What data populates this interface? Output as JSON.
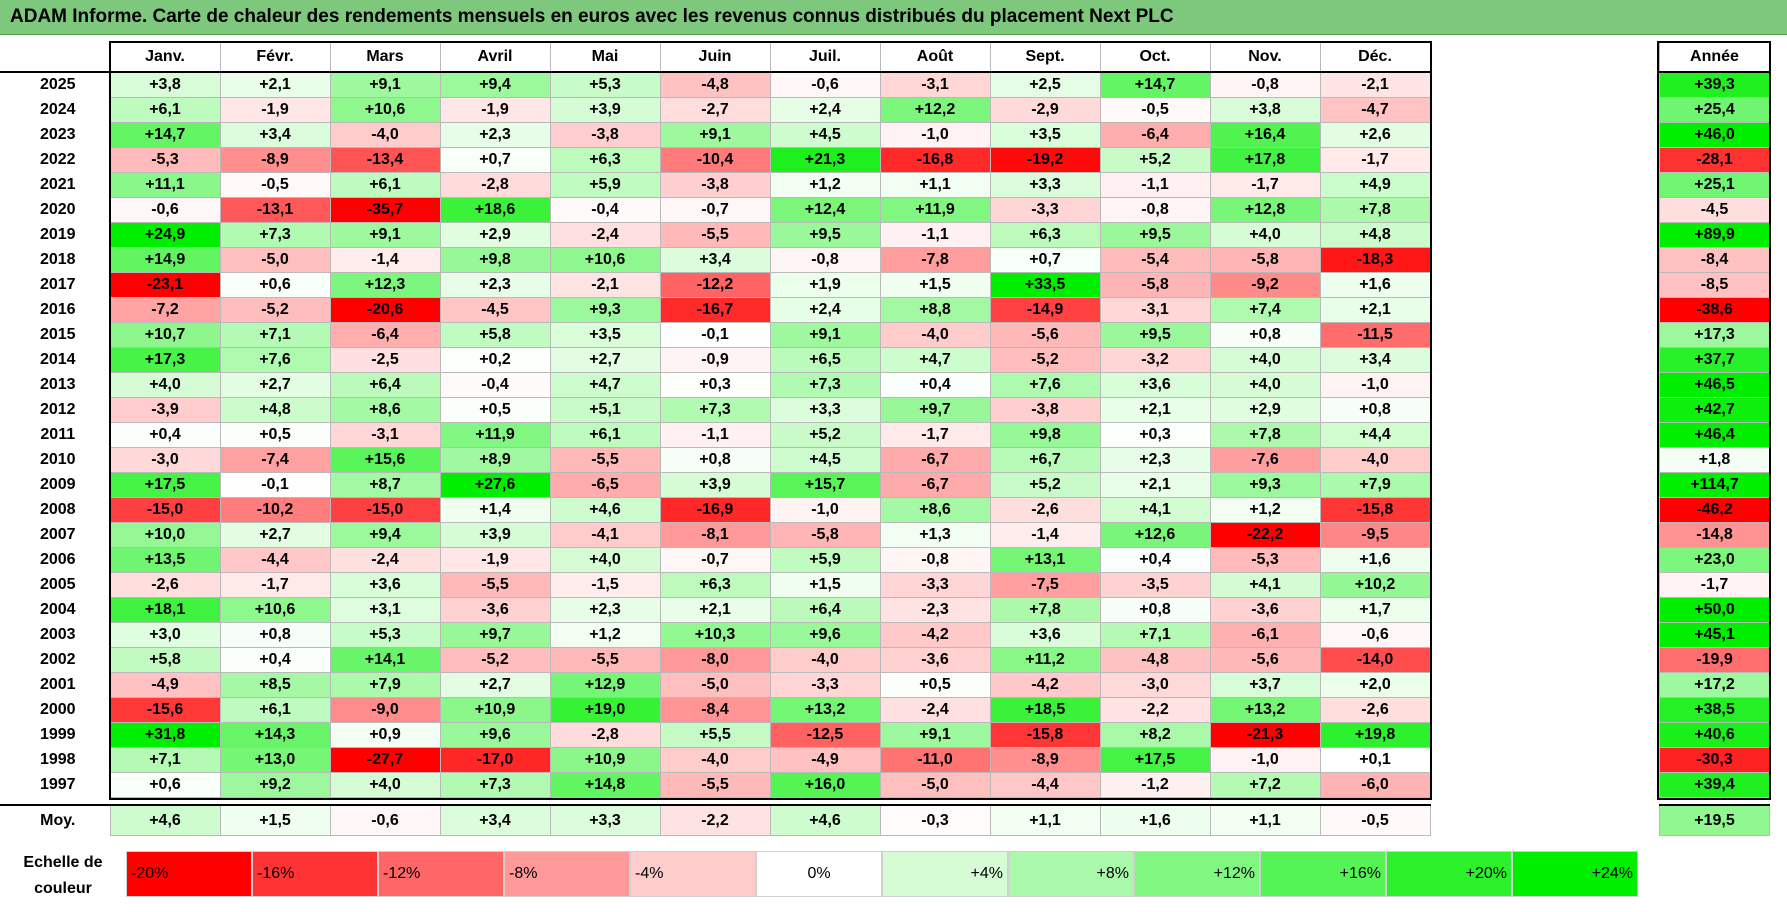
{
  "title": "ADAM Informe. Carte de chaleur des rendements mensuels en euros avec les revenus connus distribués du placement Next PLC",
  "chart_data": {
    "type": "heatmap",
    "title": "ADAM Informe. Carte de chaleur des rendements mensuels en euros avec les revenus connus distribués du placement Next PLC",
    "months": [
      "Janv.",
      "Févr.",
      "Mars",
      "Avril",
      "Mai",
      "Juin",
      "Juil.",
      "Août",
      "Sept.",
      "Oct.",
      "Nov.",
      "Déc."
    ],
    "year_header": "Année",
    "average_label": "Moy.",
    "rows": [
      {
        "year": "2025",
        "values": [
          "+3,8",
          "+2,1",
          "+9,1",
          "+9,4",
          "+5,3",
          "-4,8",
          "-0,6",
          "-3,1",
          "+2,5",
          "+14,7",
          "-0,8",
          "-2,1"
        ],
        "total": "+39,3"
      },
      {
        "year": "2024",
        "values": [
          "+6,1",
          "-1,9",
          "+10,6",
          "-1,9",
          "+3,9",
          "-2,7",
          "+2,4",
          "+12,2",
          "-2,9",
          "-0,5",
          "+3,8",
          "-4,7"
        ],
        "total": "+25,4"
      },
      {
        "year": "2023",
        "values": [
          "+14,7",
          "+3,4",
          "-4,0",
          "+2,3",
          "-3,8",
          "+9,1",
          "+4,5",
          "-1,0",
          "+3,5",
          "-6,4",
          "+16,4",
          "+2,6"
        ],
        "total": "+46,0"
      },
      {
        "year": "2022",
        "values": [
          "-5,3",
          "-8,9",
          "-13,4",
          "+0,7",
          "+6,3",
          "-10,4",
          "+21,3",
          "-16,8",
          "-19,2",
          "+5,2",
          "+17,8",
          "-1,7"
        ],
        "total": "-28,1"
      },
      {
        "year": "2021",
        "values": [
          "+11,1",
          "-0,5",
          "+6,1",
          "-2,8",
          "+5,9",
          "-3,8",
          "+1,2",
          "+1,1",
          "+3,3",
          "-1,1",
          "-1,7",
          "+4,9"
        ],
        "total": "+25,1"
      },
      {
        "year": "2020",
        "values": [
          "-0,6",
          "-13,1",
          "-35,7",
          "+18,6",
          "-0,4",
          "-0,7",
          "+12,4",
          "+11,9",
          "-3,3",
          "-0,8",
          "+12,8",
          "+7,8"
        ],
        "total": "-4,5"
      },
      {
        "year": "2019",
        "values": [
          "+24,9",
          "+7,3",
          "+9,1",
          "+2,9",
          "-2,4",
          "-5,5",
          "+9,5",
          "-1,1",
          "+6,3",
          "+9,5",
          "+4,0",
          "+4,8"
        ],
        "total": "+89,9"
      },
      {
        "year": "2018",
        "values": [
          "+14,9",
          "-5,0",
          "-1,4",
          "+9,8",
          "+10,6",
          "+3,4",
          "-0,8",
          "-7,8",
          "+0,7",
          "-5,4",
          "-5,8",
          "-18,3"
        ],
        "total": "-8,4"
      },
      {
        "year": "2017",
        "values": [
          "-23,1",
          "+0,6",
          "+12,3",
          "+2,3",
          "-2,1",
          "-12,2",
          "+1,9",
          "+1,5",
          "+33,5",
          "-5,8",
          "-9,2",
          "+1,6"
        ],
        "total": "-8,5"
      },
      {
        "year": "2016",
        "values": [
          "-7,2",
          "-5,2",
          "-20,6",
          "-4,5",
          "+9,3",
          "-16,7",
          "+2,4",
          "+8,8",
          "-14,9",
          "-3,1",
          "+7,4",
          "+2,1"
        ],
        "total": "-38,6"
      },
      {
        "year": "2015",
        "values": [
          "+10,7",
          "+7,1",
          "-6,4",
          "+5,8",
          "+3,5",
          "-0,1",
          "+9,1",
          "-4,0",
          "-5,6",
          "+9,5",
          "+0,8",
          "-11,5"
        ],
        "total": "+17,3"
      },
      {
        "year": "2014",
        "values": [
          "+17,3",
          "+7,6",
          "-2,5",
          "+0,2",
          "+2,7",
          "-0,9",
          "+6,5",
          "+4,7",
          "-5,2",
          "-3,2",
          "+4,0",
          "+3,4"
        ],
        "total": "+37,7"
      },
      {
        "year": "2013",
        "values": [
          "+4,0",
          "+2,7",
          "+6,4",
          "-0,4",
          "+4,7",
          "+0,3",
          "+7,3",
          "+0,4",
          "+7,6",
          "+3,6",
          "+4,0",
          "-1,0"
        ],
        "total": "+46,5"
      },
      {
        "year": "2012",
        "values": [
          "-3,9",
          "+4,8",
          "+8,6",
          "+0,5",
          "+5,1",
          "+7,3",
          "+3,3",
          "+9,7",
          "-3,8",
          "+2,1",
          "+2,9",
          "+0,8"
        ],
        "total": "+42,7"
      },
      {
        "year": "2011",
        "values": [
          "+0,4",
          "+0,5",
          "-3,1",
          "+11,9",
          "+6,1",
          "-1,1",
          "+5,2",
          "-1,7",
          "+9,8",
          "+0,3",
          "+7,8",
          "+4,4"
        ],
        "total": "+46,4"
      },
      {
        "year": "2010",
        "values": [
          "-3,0",
          "-7,4",
          "+15,6",
          "+8,9",
          "-5,5",
          "+0,8",
          "+4,5",
          "-6,7",
          "+6,7",
          "+2,3",
          "-7,6",
          "-4,0"
        ],
        "total": "+1,8"
      },
      {
        "year": "2009",
        "values": [
          "+17,5",
          "-0,1",
          "+8,7",
          "+27,6",
          "-6,5",
          "+3,9",
          "+15,7",
          "-6,7",
          "+5,2",
          "+2,1",
          "+9,3",
          "+7,9"
        ],
        "total": "+114,7"
      },
      {
        "year": "2008",
        "values": [
          "-15,0",
          "-10,2",
          "-15,0",
          "+1,4",
          "+4,6",
          "-16,9",
          "-1,0",
          "+8,6",
          "-2,6",
          "+4,1",
          "+1,2",
          "-15,8"
        ],
        "total": "-46,2"
      },
      {
        "year": "2007",
        "values": [
          "+10,0",
          "+2,7",
          "+9,4",
          "+3,9",
          "-4,1",
          "-8,1",
          "-5,8",
          "+1,3",
          "-1,4",
          "+12,6",
          "-22,2",
          "-9,5"
        ],
        "total": "-14,8"
      },
      {
        "year": "2006",
        "values": [
          "+13,5",
          "-4,4",
          "-2,4",
          "-1,9",
          "+4,0",
          "-0,7",
          "+5,9",
          "-0,8",
          "+13,1",
          "+0,4",
          "-5,3",
          "+1,6"
        ],
        "total": "+23,0"
      },
      {
        "year": "2005",
        "values": [
          "-2,6",
          "-1,7",
          "+3,6",
          "-5,5",
          "-1,5",
          "+6,3",
          "+1,5",
          "-3,3",
          "-7,5",
          "-3,5",
          "+4,1",
          "+10,2"
        ],
        "total": "-1,7"
      },
      {
        "year": "2004",
        "values": [
          "+18,1",
          "+10,6",
          "+3,1",
          "-3,6",
          "+2,3",
          "+2,1",
          "+6,4",
          "-2,3",
          "+7,8",
          "+0,8",
          "-3,6",
          "+1,7"
        ],
        "total": "+50,0"
      },
      {
        "year": "2003",
        "values": [
          "+3,0",
          "+0,8",
          "+5,3",
          "+9,7",
          "+1,2",
          "+10,3",
          "+9,6",
          "-4,2",
          "+3,6",
          "+7,1",
          "-6,1",
          "-0,6"
        ],
        "total": "+45,1"
      },
      {
        "year": "2002",
        "values": [
          "+5,8",
          "+0,4",
          "+14,1",
          "-5,2",
          "-5,5",
          "-8,0",
          "-4,0",
          "-3,6",
          "+11,2",
          "-4,8",
          "-5,6",
          "-14,0"
        ],
        "total": "-19,9"
      },
      {
        "year": "2001",
        "values": [
          "-4,9",
          "+8,5",
          "+7,9",
          "+2,7",
          "+12,9",
          "-5,0",
          "-3,3",
          "+0,5",
          "-4,2",
          "-3,0",
          "+3,7",
          "+2,0"
        ],
        "total": "+17,2"
      },
      {
        "year": "2000",
        "values": [
          "-15,6",
          "+6,1",
          "-9,0",
          "+10,9",
          "+19,0",
          "-8,4",
          "+13,2",
          "-2,4",
          "+18,5",
          "-2,2",
          "+13,2",
          "-2,6"
        ],
        "total": "+38,5"
      },
      {
        "year": "1999",
        "values": [
          "+31,8",
          "+14,3",
          "+0,9",
          "+9,6",
          "-2,8",
          "+5,5",
          "-12,5",
          "+9,1",
          "-15,8",
          "+8,2",
          "-21,3",
          "+19,8"
        ],
        "total": "+40,6"
      },
      {
        "year": "1998",
        "values": [
          "+7,1",
          "+13,0",
          "-27,7",
          "-17,0",
          "+10,9",
          "-4,0",
          "-4,9",
          "-11,0",
          "-8,9",
          "+17,5",
          "-1,0",
          "+0,1"
        ],
        "total": "-30,3"
      },
      {
        "year": "1997",
        "values": [
          "+0,6",
          "+9,2",
          "+4,0",
          "+7,3",
          "+14,8",
          "-5,5",
          "+16,0",
          "-5,0",
          "-4,4",
          "-1,2",
          "+7,2",
          "-6,0"
        ],
        "total": "+39,4"
      }
    ],
    "averages": [
      "+4,6",
      "+1,5",
      "-0,6",
      "+3,4",
      "+3,3",
      "-2,2",
      "+4,6",
      "-0,3",
      "+1,1",
      "+1,6",
      "+1,1",
      "-0,5"
    ],
    "average_total": "+19,5",
    "scale_label_lines": [
      "Echelle de",
      "couleur"
    ],
    "scale": [
      {
        "label": "-20%",
        "value": -20
      },
      {
        "label": "-16%",
        "value": -16
      },
      {
        "label": "-12%",
        "value": -12
      },
      {
        "label": "-8%",
        "value": -8
      },
      {
        "label": "-4%",
        "value": -4
      },
      {
        "label": "0%",
        "value": 0
      },
      {
        "label": "+4%",
        "value": 4
      },
      {
        "label": "+8%",
        "value": 8
      },
      {
        "label": "+12%",
        "value": 12
      },
      {
        "label": "+16%",
        "value": 16
      },
      {
        "label": "+20%",
        "value": 20
      },
      {
        "label": "+24%",
        "value": 24
      }
    ],
    "colors": {
      "negative_max": "#ff0000",
      "neutral": "#ffffff",
      "positive_max": "#00ee00",
      "title_bar": "#7dc87d"
    }
  }
}
